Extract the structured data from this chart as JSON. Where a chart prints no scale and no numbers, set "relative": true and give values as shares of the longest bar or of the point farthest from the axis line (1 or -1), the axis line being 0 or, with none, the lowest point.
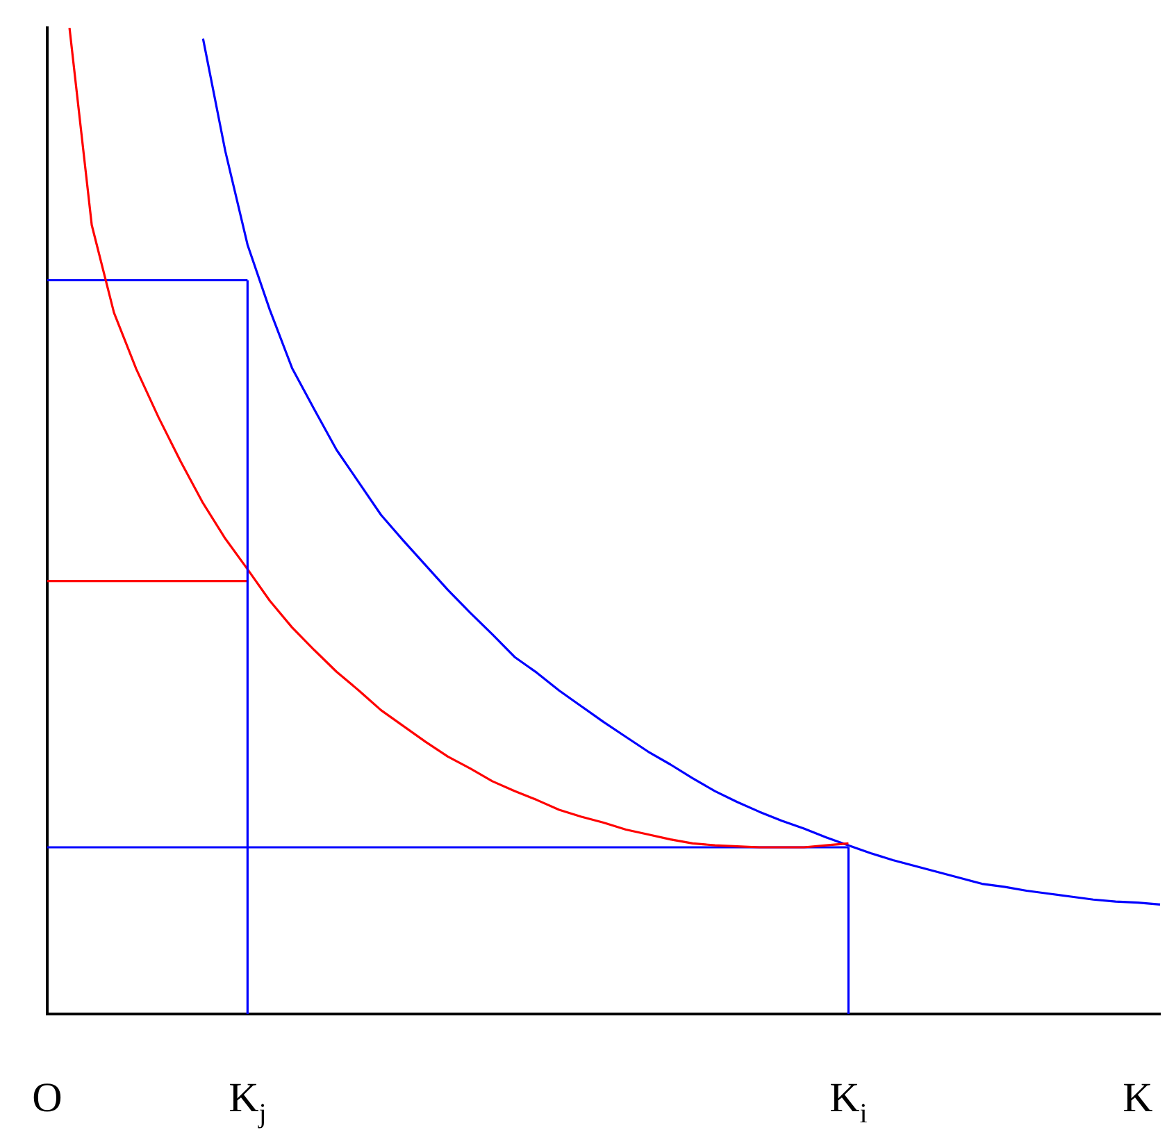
{
  "chart_data": {
    "type": "line",
    "relative": true,
    "categories": [
      "O",
      null,
      null,
      null,
      null,
      null,
      null,
      null,
      null,
      "K$_{j}$",
      null,
      null,
      null,
      null,
      null,
      null,
      null,
      null,
      null,
      null,
      null,
      null,
      null,
      null,
      null,
      null,
      null,
      null,
      null,
      null,
      null,
      null,
      null,
      null,
      null,
      null,
      "K$_{i}$",
      null,
      null,
      null,
      null,
      null,
      null,
      null,
      null,
      null,
      null,
      null,
      null,
      "K",
      null
    ],
    "tick_labels": "x",
    "grid": false,
    "legend": false,
    "marker": "none",
    "line_style": "solid",
    "ref_lines": [
      {
        "axis": "x",
        "value": "K$_{j}$",
        "color": "#0000ff"
      },
      {
        "axis": "x",
        "value": "K$_{i}$",
        "color": "#0000ff"
      }
    ],
    "series": [
      {
        "color": "#ff0000",
        "values": [
          null,
          1.0,
          0.8,
          0.711,
          0.654,
          0.605,
          0.56,
          0.518,
          0.482,
          0.451,
          0.419,
          0.392,
          0.369,
          0.347,
          0.328,
          0.308,
          0.292,
          0.276,
          0.261,
          0.249,
          0.236,
          0.226,
          0.217,
          0.207,
          0.2,
          0.194,
          0.187,
          0.182,
          0.177,
          0.173,
          0.171,
          0.17,
          0.169,
          0.169,
          0.169,
          0.171,
          0.173,
          null,
          null,
          null,
          null,
          null,
          null,
          null,
          null,
          null,
          null,
          null,
          null,
          null,
          null
        ]
      },
      {
        "color": "#0000ff",
        "values": [
          null,
          null,
          null,
          null,
          null,
          null,
          null,
          0.989,
          0.875,
          0.78,
          0.714,
          0.655,
          0.613,
          0.572,
          0.539,
          0.506,
          0.48,
          0.455,
          0.43,
          0.407,
          0.385,
          0.362,
          0.346,
          0.328,
          0.312,
          0.296,
          0.281,
          0.266,
          0.253,
          0.239,
          0.226,
          0.215,
          0.205,
          0.196,
          0.188,
          0.179,
          0.171,
          0.163,
          0.156,
          0.15,
          0.144,
          0.138,
          0.132,
          0.129,
          0.125,
          0.122,
          0.119,
          0.116,
          0.114,
          0.113,
          0.111
        ]
      },
      {
        "color": "#0000ff",
        "values": [
          0.744,
          0.744,
          0.744,
          0.744,
          0.744,
          0.744,
          0.744,
          0.744,
          0.744,
          0.744,
          null,
          null,
          null,
          null,
          null,
          null,
          null,
          null,
          null,
          null,
          null,
          null,
          null,
          null,
          null,
          null,
          null,
          null,
          null,
          null,
          null,
          null,
          null,
          null,
          null,
          null,
          null,
          null,
          null,
          null,
          null,
          null,
          null,
          null,
          null,
          null,
          null,
          null,
          null,
          null,
          null
        ]
      },
      {
        "color": "#ff0000",
        "values": [
          0.439,
          0.439,
          0.439,
          0.439,
          0.439,
          0.439,
          0.439,
          0.439,
          0.439,
          0.439,
          null,
          null,
          null,
          null,
          null,
          null,
          null,
          null,
          null,
          null,
          null,
          null,
          null,
          null,
          null,
          null,
          null,
          null,
          null,
          null,
          null,
          null,
          null,
          null,
          null,
          null,
          null,
          null,
          null,
          null,
          null,
          null,
          null,
          null,
          null,
          null,
          null,
          null,
          null,
          null,
          null
        ]
      },
      {
        "color": "#0000ff",
        "values": [
          0.169,
          0.169,
          0.169,
          0.169,
          0.169,
          0.169,
          0.169,
          0.169,
          0.169,
          0.169,
          0.169,
          0.169,
          0.169,
          0.169,
          0.169,
          0.169,
          0.169,
          0.169,
          0.169,
          0.169,
          0.169,
          0.169,
          0.169,
          0.169,
          0.169,
          0.169,
          0.169,
          0.169,
          0.169,
          0.169,
          0.169,
          0.169,
          0.169,
          0.169,
          0.169,
          0.169,
          0.169,
          null,
          null,
          null,
          null,
          null,
          null,
          null,
          null,
          null,
          null,
          null,
          null,
          null,
          null
        ]
      }
    ]
  }
}
